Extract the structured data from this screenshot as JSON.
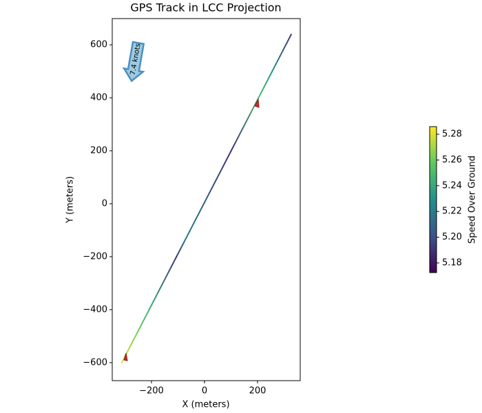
{
  "chart_data": {
    "type": "line",
    "title": "GPS Track in LCC Projection",
    "x_label": "X (meters)",
    "y_label": "Y (meters)",
    "colorbar_label": "Speed Over Ground",
    "colormap": "viridis",
    "annotations": [
      {
        "text": "7.4 knots"
      }
    ],
    "series": [
      {
        "x": [
          -312,
          -250.1,
          -198.5,
          -105.7,
          -69.6,
          100.6,
          203.7,
          255.3,
          327
        ],
        "y": [
          -600,
          -480,
          -380,
          -200,
          -130,
          200,
          400,
          500,
          639
        ],
        "c": [
          5.28,
          5.26,
          5.24,
          5.19,
          5.22,
          5.19,
          5.25,
          5.23,
          5.19
        ]
      }
    ],
    "xlim": [
      -348,
      361
    ],
    "ylim": [
      -668,
      699
    ],
    "clim": [
      5.1725,
      5.2859
    ],
    "xticks": [
      {
        "value": -200,
        "label": "−200"
      },
      0,
      200
    ],
    "yticks": [
      {
        "value": -600,
        "label": "−600"
      },
      {
        "value": -400,
        "label": "−400"
      },
      {
        "value": -200,
        "label": "−200"
      },
      0,
      200,
      400,
      600
    ],
    "cticks": [
      5.18,
      {
        "value": 5.2,
        "label": "5.20"
      },
      5.22,
      5.24,
      5.26,
      5.28
    ]
  }
}
